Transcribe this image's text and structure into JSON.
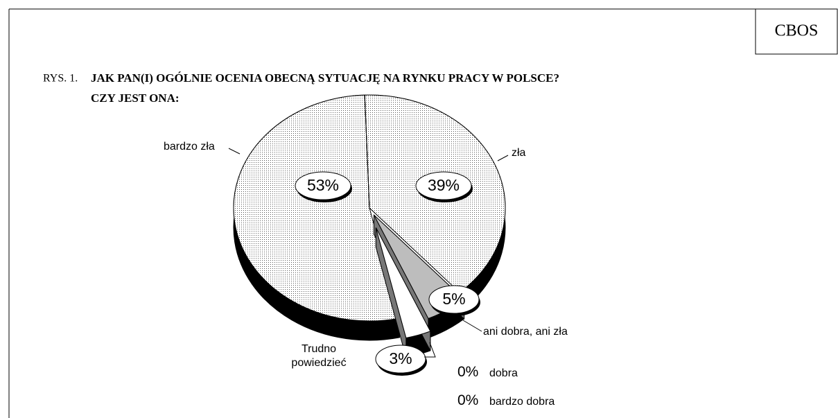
{
  "header": {
    "logo": "CBOS"
  },
  "chart_data": {
    "type": "pie",
    "figure_label": "RYS. 1.",
    "title": [
      "JAK PAN(I) OGÓLNIE OCENIA OBECNĄ SYTUACJĘ NA RYNKU PRACY W POLSCE?",
      "CZY JEST ONA:"
    ],
    "categories": [
      "zła",
      "ani dobra, ani zła",
      "Trudno powiedzieć",
      "bardzo zła",
      "dobra",
      "bardzo dobra"
    ],
    "values": [
      39,
      5,
      3,
      53,
      0,
      0
    ],
    "value_labels": [
      "39%",
      "5%",
      "3%",
      "53%",
      "0%",
      "0%"
    ],
    "colors": [
      "#e4e4e4",
      "#bdbdbd",
      "#ffffff",
      "#d2d2d2",
      "#ffffff",
      "#ffffff"
    ]
  }
}
